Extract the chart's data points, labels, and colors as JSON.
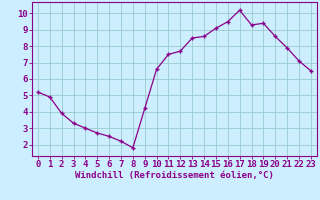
{
  "x": [
    0,
    1,
    2,
    3,
    4,
    5,
    6,
    7,
    8,
    9,
    10,
    11,
    12,
    13,
    14,
    15,
    16,
    17,
    18,
    19,
    20,
    21,
    22,
    23
  ],
  "y": [
    5.2,
    4.9,
    3.9,
    3.3,
    3.0,
    2.7,
    2.5,
    2.2,
    1.8,
    4.2,
    6.6,
    7.5,
    7.7,
    8.5,
    8.6,
    9.1,
    9.5,
    10.2,
    9.3,
    9.4,
    8.6,
    7.9,
    7.1,
    6.5
  ],
  "line_color": "#8b008b",
  "marker": "+",
  "bg_color": "#cceeff",
  "grid_color": "#99cccc",
  "xlabel": "Windchill (Refroidissement éolien,°C)",
  "xlim": [
    -0.5,
    23.5
  ],
  "ylim": [
    1.3,
    10.7
  ],
  "yticks": [
    2,
    3,
    4,
    5,
    6,
    7,
    8,
    9,
    10
  ],
  "xticks": [
    0,
    1,
    2,
    3,
    4,
    5,
    6,
    7,
    8,
    9,
    10,
    11,
    12,
    13,
    14,
    15,
    16,
    17,
    18,
    19,
    20,
    21,
    22,
    23
  ],
  "tick_color": "#8b008b",
  "label_color": "#8b008b",
  "spine_color": "#8b008b",
  "fontsize_xlabel": 6.5,
  "fontsize_tick": 6.5
}
